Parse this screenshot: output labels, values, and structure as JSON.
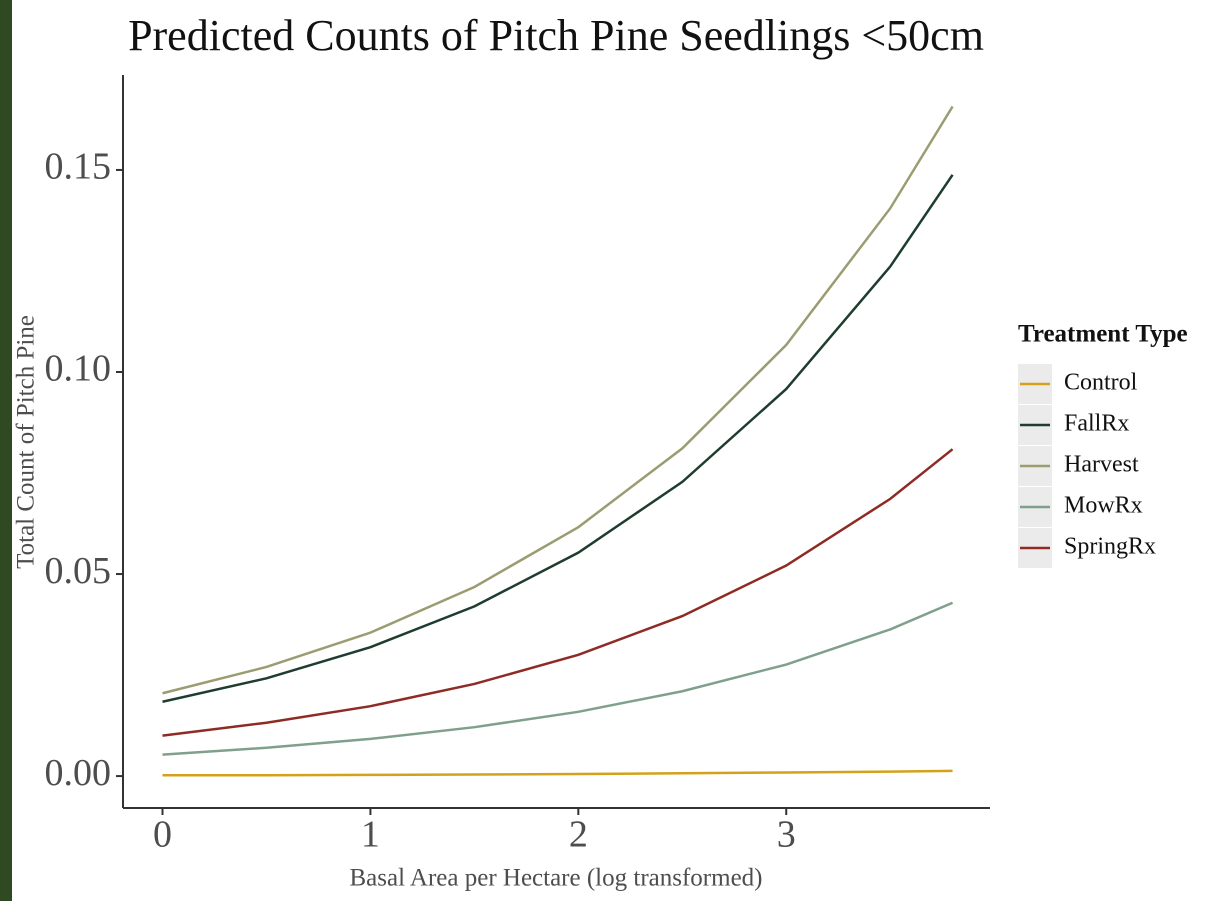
{
  "chart_data": {
    "type": "line",
    "title": "Predicted Counts of Pitch Pine Seedlings <50cm",
    "x_label": "Basal Area per Hectare (log transformed)",
    "y_label": "Total Count of Pitch Pine",
    "legend_title": "Treatment Type",
    "legend_position": "right",
    "x": [
      0,
      0.5,
      1,
      1.5,
      2,
      2.5,
      3,
      3.5,
      3.8
    ],
    "series": [
      {
        "name": "Control",
        "color": "#d4a21a",
        "values": [
          0.0002,
          0.0002,
          0.0003,
          0.0004,
          0.0005,
          0.0007,
          0.0009,
          0.0011,
          0.0013
        ]
      },
      {
        "name": "FallRx",
        "color": "#1f3d2e",
        "values": [
          0.0184,
          0.0242,
          0.0319,
          0.042,
          0.0553,
          0.0728,
          0.0958,
          0.1261,
          0.1488
        ]
      },
      {
        "name": "Harvest",
        "color": "#9c9c72",
        "values": [
          0.0205,
          0.027,
          0.0355,
          0.0468,
          0.0616,
          0.0811,
          0.1067,
          0.1405,
          0.1657
        ]
      },
      {
        "name": "MowRx",
        "color": "#7fa08c",
        "values": [
          0.0053,
          0.007,
          0.0092,
          0.0121,
          0.0159,
          0.021,
          0.0276,
          0.0363,
          0.0429
        ]
      },
      {
        "name": "SpringRx",
        "color": "#8e2b24",
        "values": [
          0.01,
          0.0132,
          0.0173,
          0.0228,
          0.03,
          0.0396,
          0.0521,
          0.0686,
          0.0809
        ]
      }
    ],
    "xlim": [
      -0.19,
      3.98
    ],
    "ylim": [
      -0.0079,
      0.1735
    ],
    "xticks": [
      0,
      1,
      2,
      3
    ],
    "yticks": [
      {
        "value": 0,
        "label": "0.00"
      },
      {
        "value": 0.05,
        "label": "0.05"
      },
      {
        "value": 0.1,
        "label": "0.10"
      },
      {
        "value": 0.15,
        "label": "0.15"
      }
    ]
  }
}
